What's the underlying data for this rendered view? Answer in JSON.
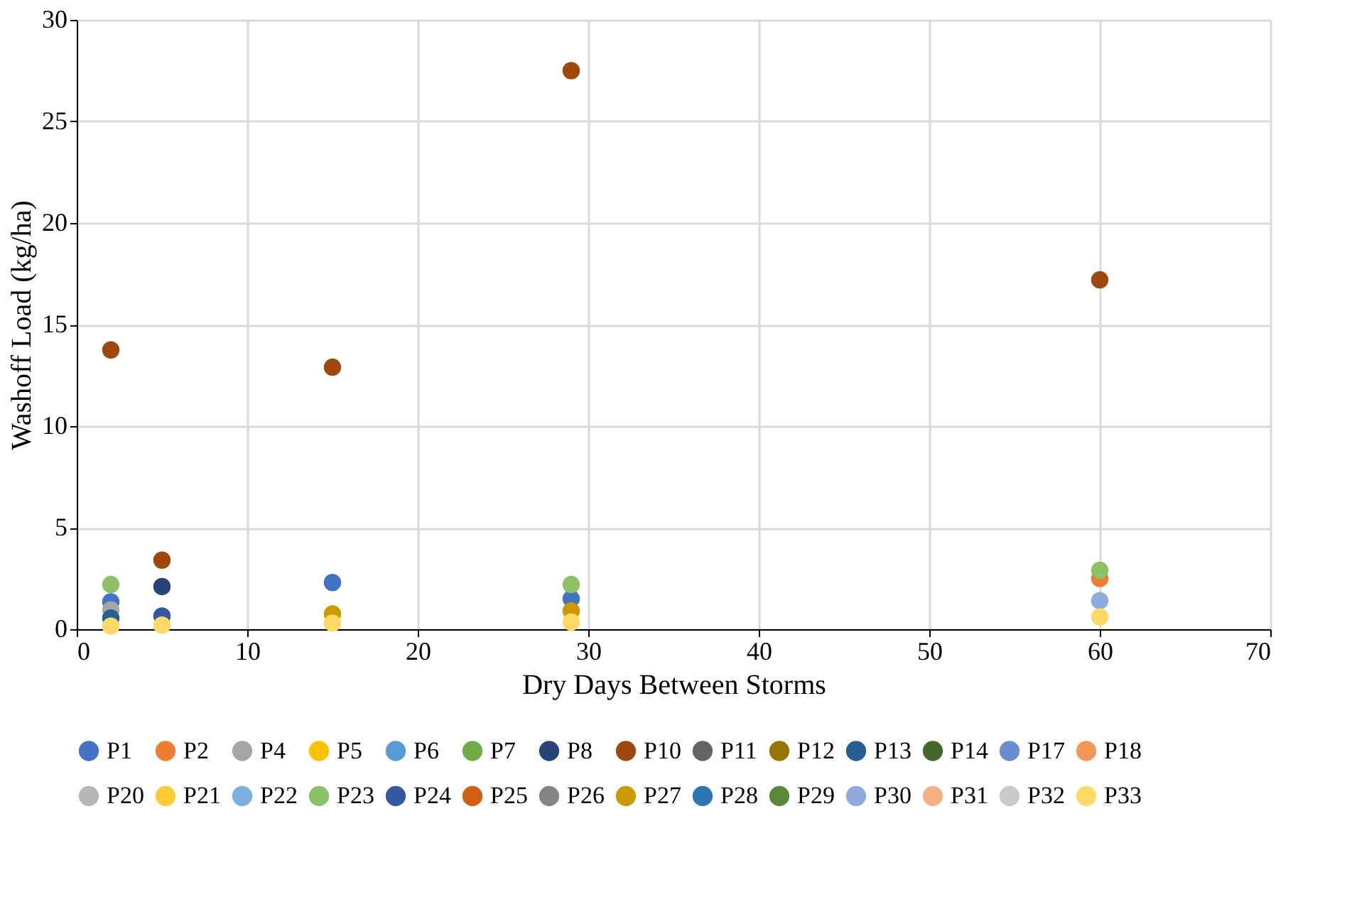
{
  "chart_data": {
    "type": "scatter",
    "xlabel": "Dry Days Between Storms",
    "ylabel": "Washoff Load (kg/ha)",
    "x": [
      2,
      5,
      15,
      29,
      60
    ],
    "xlim": [
      0,
      70
    ],
    "xticks": [
      0,
      10,
      20,
      30,
      40,
      50,
      60,
      70
    ],
    "ylim": [
      0,
      30
    ],
    "yticks": [
      0,
      5,
      10,
      15,
      20,
      25,
      30
    ],
    "grid": true,
    "legend": "bottom",
    "marker": "circle",
    "series": [
      {
        "name": "P1",
        "color": "#4472c4",
        "values": [
          1.35,
          null,
          2.3,
          1.5,
          null
        ]
      },
      {
        "name": "P2",
        "color": "#ed7d31",
        "values": [
          null,
          null,
          null,
          null,
          2.5
        ]
      },
      {
        "name": "P4",
        "color": "#a5a5a5",
        "values": [
          0.95,
          null,
          null,
          null,
          null
        ]
      },
      {
        "name": "P5",
        "color": "#ffc000",
        "values": [
          null,
          null,
          null,
          null,
          null
        ]
      },
      {
        "name": "P6",
        "color": "#5b9bd5",
        "values": [
          null,
          null,
          null,
          null,
          null
        ]
      },
      {
        "name": "P7",
        "color": "#70ad47",
        "values": [
          null,
          null,
          null,
          null,
          null
        ]
      },
      {
        "name": "P8",
        "color": "#264478",
        "values": [
          null,
          2.1,
          null,
          null,
          null
        ]
      },
      {
        "name": "P10",
        "color": "#9e480e",
        "values": [
          13.75,
          3.4,
          12.9,
          27.5,
          17.2
        ]
      },
      {
        "name": "P11",
        "color": "#636363",
        "values": [
          null,
          null,
          null,
          null,
          null
        ]
      },
      {
        "name": "P12",
        "color": "#997300",
        "values": [
          null,
          null,
          null,
          null,
          null
        ]
      },
      {
        "name": "P13",
        "color": "#255e91",
        "values": [
          0.55,
          null,
          null,
          null,
          null
        ]
      },
      {
        "name": "P14",
        "color": "#43682b",
        "values": [
          null,
          null,
          null,
          null,
          null
        ]
      },
      {
        "name": "P17",
        "color": "#698ed0",
        "values": [
          null,
          null,
          null,
          null,
          null
        ]
      },
      {
        "name": "P18",
        "color": "#f1975a",
        "values": [
          null,
          null,
          null,
          null,
          null
        ]
      },
      {
        "name": "P20",
        "color": "#b7b7b7",
        "values": [
          null,
          null,
          null,
          null,
          null
        ]
      },
      {
        "name": "P21",
        "color": "#ffcd33",
        "values": [
          null,
          null,
          null,
          null,
          null
        ]
      },
      {
        "name": "P22",
        "color": "#7cafdd",
        "values": [
          null,
          null,
          null,
          null,
          null
        ]
      },
      {
        "name": "P23",
        "color": "#8cc168",
        "values": [
          2.2,
          null,
          null,
          2.2,
          2.9
        ]
      },
      {
        "name": "P24",
        "color": "#335aa1",
        "values": [
          null,
          0.65,
          null,
          null,
          null
        ]
      },
      {
        "name": "P25",
        "color": "#d26012",
        "values": [
          null,
          null,
          null,
          null,
          null
        ]
      },
      {
        "name": "P26",
        "color": "#848484",
        "values": [
          null,
          null,
          null,
          null,
          null
        ]
      },
      {
        "name": "P27",
        "color": "#cc9a00",
        "values": [
          null,
          null,
          0.75,
          0.9,
          null
        ]
      },
      {
        "name": "P28",
        "color": "#2e75b6",
        "values": [
          null,
          null,
          null,
          null,
          null
        ]
      },
      {
        "name": "P29",
        "color": "#5a8a39",
        "values": [
          null,
          null,
          null,
          null,
          null
        ]
      },
      {
        "name": "P30",
        "color": "#8faadc",
        "values": [
          null,
          null,
          null,
          null,
          1.4
        ]
      },
      {
        "name": "P31",
        "color": "#f4b183",
        "values": [
          null,
          null,
          null,
          null,
          null
        ]
      },
      {
        "name": "P32",
        "color": "#c9c9c9",
        "values": [
          null,
          null,
          null,
          null,
          null
        ]
      },
      {
        "name": "P33",
        "color": "#ffd966",
        "values": [
          0.15,
          0.2,
          0.3,
          0.35,
          0.6
        ]
      }
    ]
  }
}
